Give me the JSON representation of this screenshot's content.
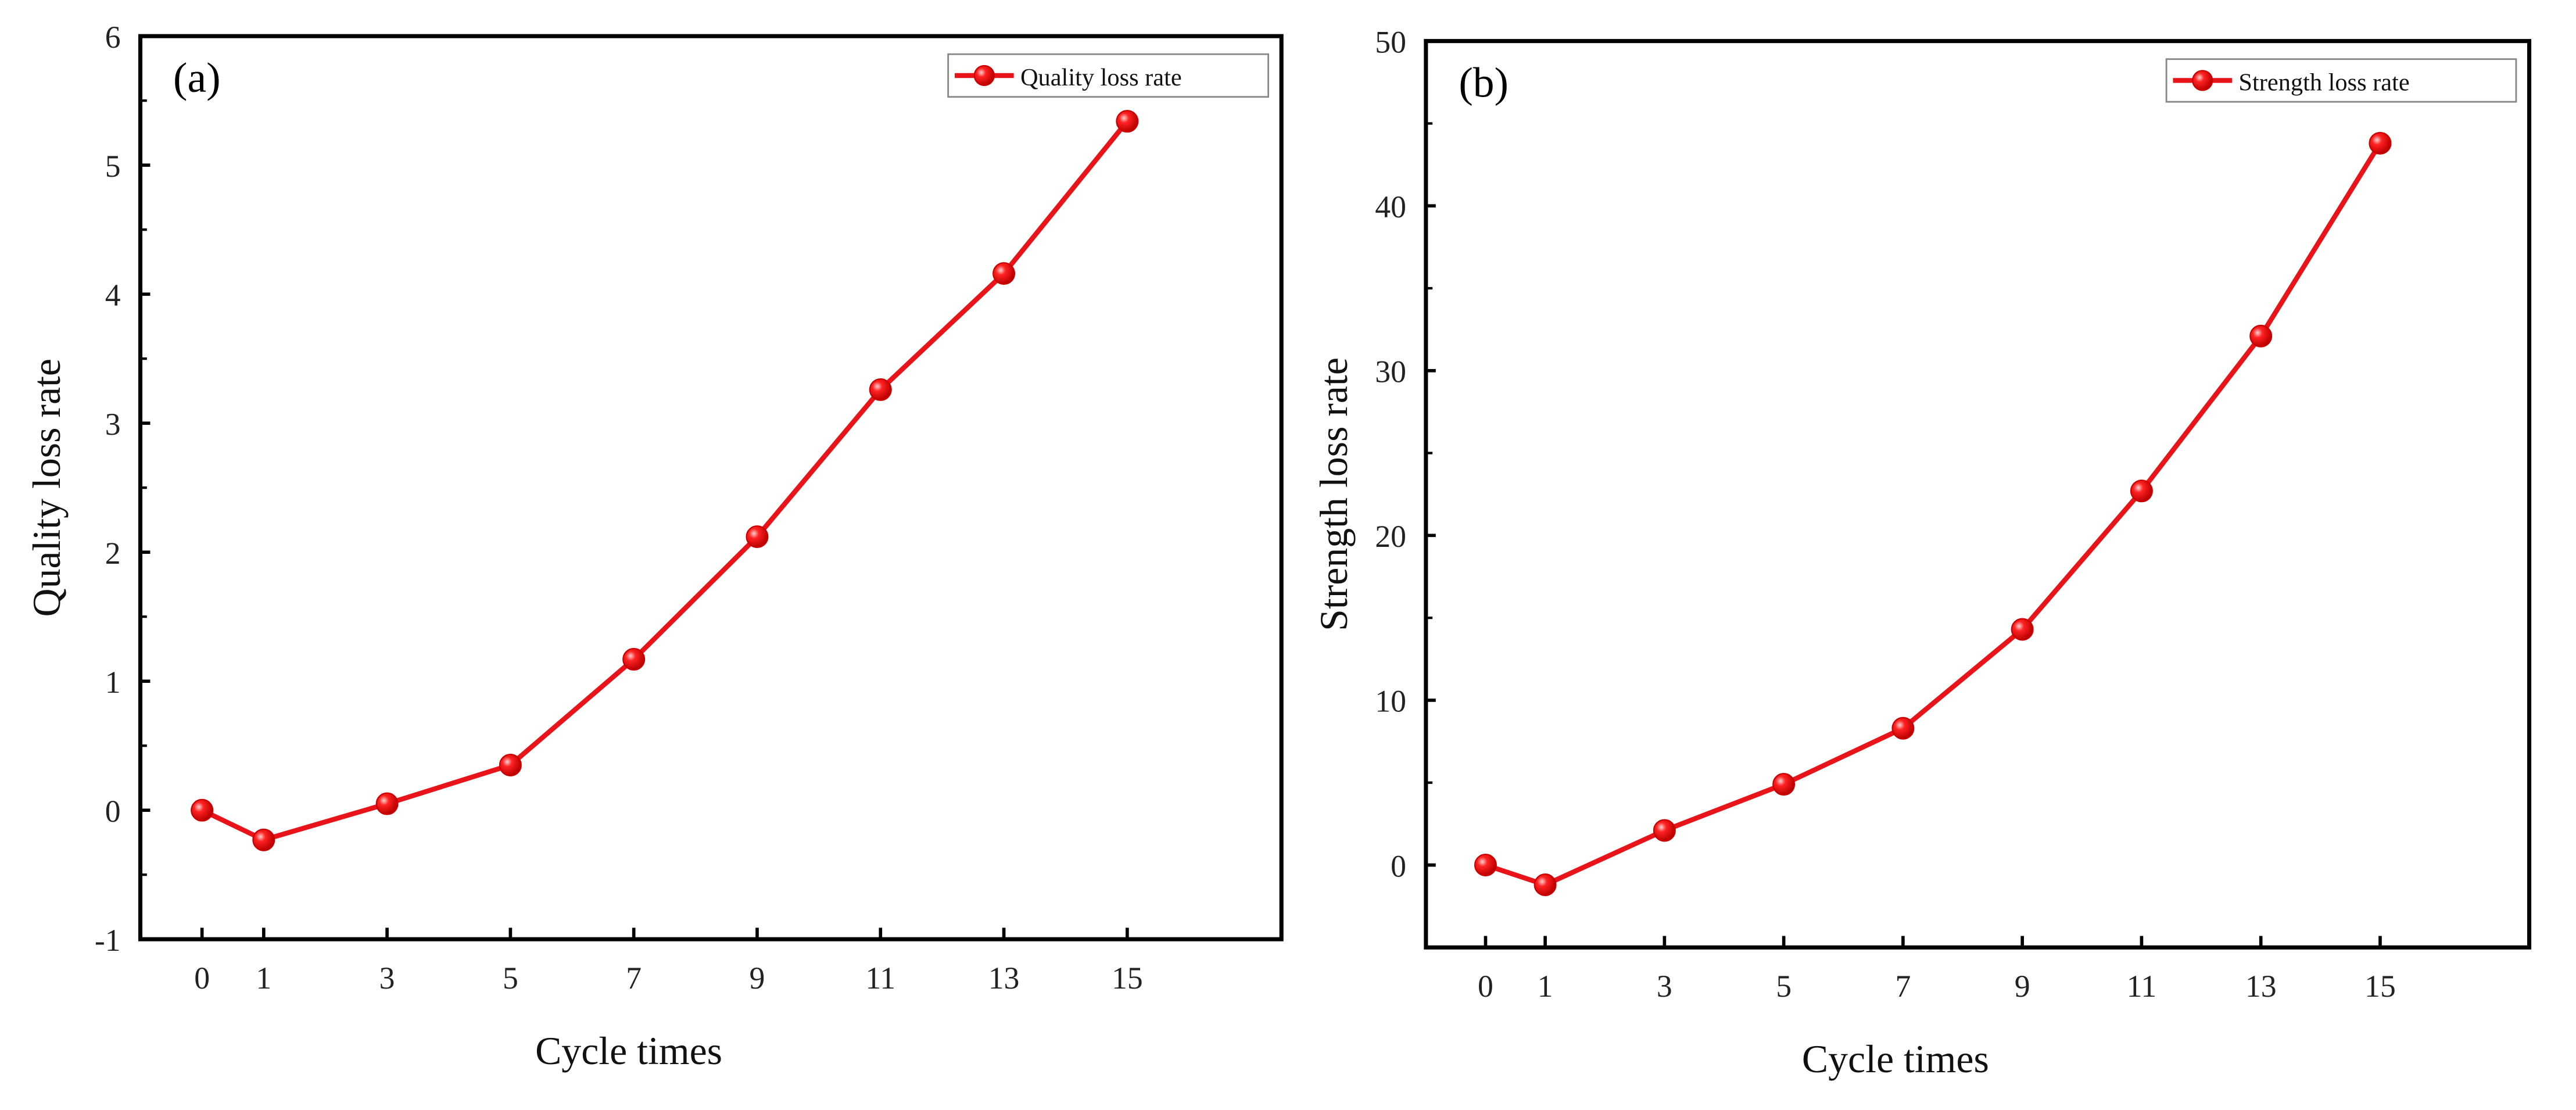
{
  "chart_data": [
    {
      "type": "line",
      "panel_label": "(a)",
      "title": "",
      "xlabel": "Cycle times",
      "ylabel": "Quality loss rate",
      "x": [
        0,
        1,
        3,
        5,
        7,
        9,
        11,
        13,
        15
      ],
      "series": [
        {
          "name": "Quality loss rate",
          "values": [
            0,
            -0.23,
            0.05,
            0.35,
            1.17,
            2.12,
            3.26,
            4.16,
            5.34
          ],
          "color": "#e8141a"
        }
      ],
      "xticks": [
        "0",
        "1",
        "3",
        "5",
        "7",
        "9",
        "11",
        "13",
        "15"
      ],
      "yticks": [
        "-1",
        "0",
        "1",
        "2",
        "3",
        "4",
        "5",
        "6"
      ],
      "ylim": [
        -1,
        6
      ],
      "xlim": [
        -1,
        17.5
      ],
      "grid": false,
      "legend": "top-right"
    },
    {
      "type": "line",
      "panel_label": "(b)",
      "title": "",
      "xlabel": "Cycle times",
      "ylabel": "Strength loss rate",
      "x": [
        0,
        1,
        3,
        5,
        7,
        9,
        11,
        13,
        15
      ],
      "series": [
        {
          "name": "Strength loss rate",
          "values": [
            0,
            -1.2,
            2.1,
            4.9,
            8.3,
            14.3,
            22.7,
            32.1,
            43.8
          ],
          "color": "#e8141a"
        }
      ],
      "xticks": [
        "0",
        "1",
        "3",
        "5",
        "7",
        "9",
        "11",
        "13",
        "15"
      ],
      "yticks": [
        "0",
        "10",
        "20",
        "30",
        "40",
        "50"
      ],
      "ylim": [
        -5,
        50
      ],
      "xlim": [
        -1,
        17.5
      ],
      "grid": false,
      "legend": "top-right"
    }
  ]
}
